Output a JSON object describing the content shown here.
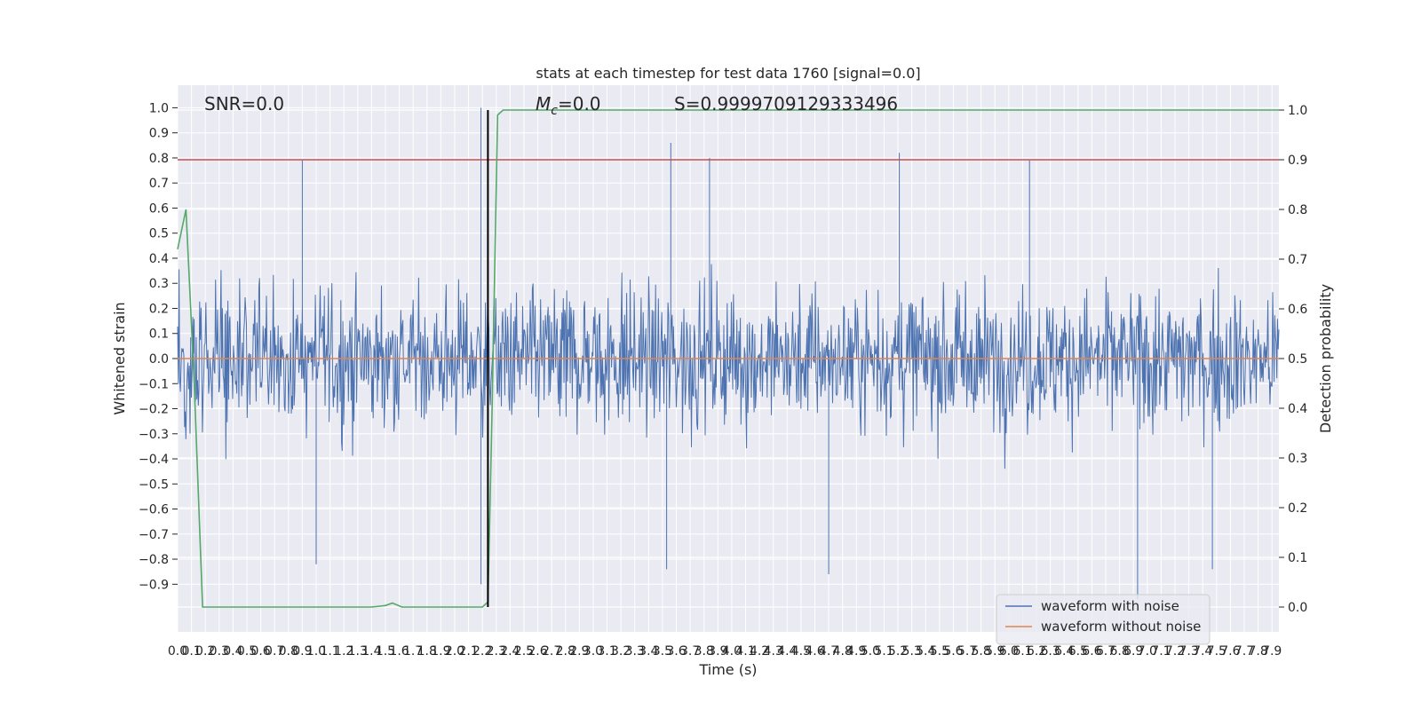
{
  "chart_data": {
    "type": "line",
    "title": "stats at each timestep for test data 1760 [signal=0.0]",
    "xlabel": "Time (s)",
    "ylabel_left": "Whitened strain",
    "ylabel_right": "Detection probability",
    "annotations": {
      "snr": "SNR=0.0",
      "mc_symbol": "M",
      "mc_sub": "c",
      "mc_value": "=0.0",
      "s": "S=0.9999709129333496"
    },
    "xlim": [
      0.0,
      7.95
    ],
    "ylim_left": [
      -1.09,
      1.09
    ],
    "ylim_right": [
      -0.05,
      1.05
    ],
    "x_ticks": [
      "0.0",
      "0.1",
      "0.2",
      "0.3",
      "0.4",
      "0.5",
      "0.6",
      "0.7",
      "0.8",
      "0.9",
      "1.0",
      "1.1",
      "1.2",
      "1.3",
      "1.4",
      "1.5",
      "1.6",
      "1.7",
      "1.8",
      "1.9",
      "2.0",
      "2.1",
      "2.2",
      "2.3",
      "2.4",
      "2.5",
      "2.6",
      "2.7",
      "2.8",
      "2.9",
      "3.0",
      "3.1",
      "3.2",
      "3.3",
      "3.4",
      "3.5",
      "3.6",
      "3.7",
      "3.8",
      "3.9",
      "4.0",
      "4.1",
      "4.2",
      "4.3",
      "4.4",
      "4.5",
      "4.6",
      "4.7",
      "4.8",
      "4.9",
      "5.0",
      "5.1",
      "5.2",
      "5.3",
      "5.4",
      "5.5",
      "5.6",
      "5.7",
      "5.8",
      "5.9",
      "6.0",
      "6.1",
      "6.2",
      "6.3",
      "6.4",
      "6.5",
      "6.6",
      "6.7",
      "6.8",
      "6.9",
      "7.0",
      "7.1",
      "7.2",
      "7.3",
      "7.4",
      "7.5",
      "7.6",
      "7.7",
      "7.8",
      "7.9"
    ],
    "y_ticks_left": [
      "−0.9",
      "−0.8",
      "−0.7",
      "−0.6",
      "−0.5",
      "−0.4",
      "−0.3",
      "−0.2",
      "−0.1",
      "0.0",
      "0.1",
      "0.2",
      "0.3",
      "0.4",
      "0.5",
      "0.6",
      "0.7",
      "0.8",
      "0.9",
      "1.0"
    ],
    "y_ticks_right": [
      "0.0",
      "0.1",
      "0.2",
      "0.3",
      "0.4",
      "0.5",
      "0.6",
      "0.7",
      "0.8",
      "0.9",
      "1.0"
    ],
    "series": [
      {
        "name": "waveform with noise",
        "color": "#4c72b0",
        "axis": "left",
        "x_range": [
          0.0,
          7.95
        ],
        "sample_count": 1600,
        "envelope_typical": [
          -0.35,
          0.35
        ],
        "extremes": [
          {
            "x": 0.9,
            "y": 0.79
          },
          {
            "x": 2.19,
            "y": 1.0
          },
          {
            "x": 2.19,
            "y": -0.9
          },
          {
            "x": 3.56,
            "y": 0.86
          },
          {
            "x": 3.84,
            "y": 0.8
          },
          {
            "x": 5.21,
            "y": 0.82
          },
          {
            "x": 6.15,
            "y": 0.79
          },
          {
            "x": 1.0,
            "y": -0.82
          },
          {
            "x": 3.53,
            "y": -0.84
          },
          {
            "x": 4.7,
            "y": -0.86
          },
          {
            "x": 6.93,
            "y": -0.96
          },
          {
            "x": 7.47,
            "y": -0.84
          }
        ]
      },
      {
        "name": "waveform without noise",
        "color": "#dd8452",
        "axis": "left",
        "x": [
          0.0,
          7.95
        ],
        "y": [
          0.0,
          0.0
        ]
      },
      {
        "color": "#55a868",
        "axis": "right",
        "x": [
          0.0,
          0.06,
          0.12,
          0.18,
          1.4,
          1.5,
          1.55,
          1.62,
          2.2,
          2.24,
          2.27,
          2.31,
          2.35,
          7.95
        ],
        "y": [
          0.72,
          0.8,
          0.45,
          0.0,
          0.0,
          0.003,
          0.008,
          0.0,
          0.0,
          0.01,
          0.4,
          0.99,
          1.0,
          1.0
        ]
      }
    ],
    "threshold_line": {
      "axis": "right",
      "y": 0.9,
      "color": "#c44e52"
    },
    "vertical_marker": {
      "x": 2.24,
      "color": "#000000"
    },
    "grid": true,
    "legend_position": "bottom-right",
    "colors": {
      "background": "#eaeaf2",
      "grid": "#ffffff"
    }
  }
}
